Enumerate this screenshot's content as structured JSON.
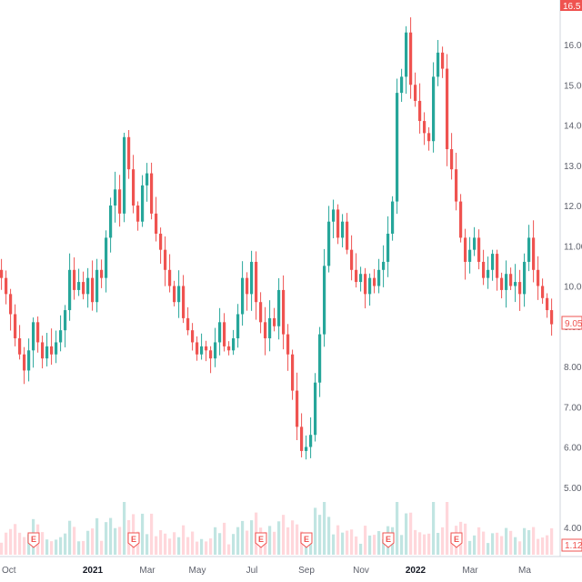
{
  "chart_data": {
    "type": "candlestick",
    "xlabel": "",
    "ylabel": "",
    "title": "",
    "ylim": [
      4,
      16.5
    ],
    "y_ticks": [
      "4.00",
      "5.00",
      "6.00",
      "7.00",
      "8.00",
      "9.00",
      "10.00",
      "11.00",
      "12.00",
      "13.00",
      "14.00",
      "15.00",
      "16.00"
    ],
    "y_tick_values": [
      4,
      5,
      6,
      7,
      8,
      9,
      10,
      11,
      12,
      13,
      14,
      15,
      16
    ],
    "x_ticks": [
      {
        "label": "Oct",
        "bold": false
      },
      {
        "label": "2021",
        "bold": true
      },
      {
        "label": "Mar",
        "bold": false
      },
      {
        "label": "May",
        "bold": false
      },
      {
        "label": "Jul",
        "bold": false
      },
      {
        "label": "Sep",
        "bold": false
      },
      {
        "label": "Nov",
        "bold": false
      },
      {
        "label": "2022",
        "bold": true
      },
      {
        "label": "Mar",
        "bold": false
      },
      {
        "label": "Ma",
        "bold": false
      }
    ],
    "x_tick_index": [
      0,
      20,
      32,
      43,
      55,
      67,
      79,
      91,
      103,
      115
    ],
    "earnings_markers": [
      {
        "label": "E",
        "index": 7
      },
      {
        "label": "E",
        "index": 29
      },
      {
        "label": "E",
        "index": 57
      },
      {
        "label": "E",
        "index": 67
      },
      {
        "label": "E",
        "index": 85
      },
      {
        "label": "E",
        "index": 100
      }
    ],
    "last_price_label": "9.05",
    "last_price": 9.05,
    "top_price_label": "16.5",
    "volume_label": "1.12",
    "colors": {
      "up": "#26a69a",
      "down": "#ef5350",
      "volume_up": "#b2dfdb",
      "volume_down": "#ffcdd2",
      "price_tag": "#ef5350"
    },
    "close": [
      10.2,
      9.8,
      9.3,
      8.7,
      8.3,
      7.9,
      8.4,
      9.1,
      8.6,
      8.2,
      8.5,
      8.3,
      8.6,
      8.9,
      9.4,
      10.4,
      9.9,
      10.1,
      9.8,
      10.2,
      9.6,
      10.4,
      10.2,
      11.2,
      12.0,
      12.4,
      11.8,
      13.7,
      12.9,
      12.0,
      11.6,
      12.5,
      12.8,
      11.8,
      11.3,
      10.9,
      10.4,
      10.0,
      9.6,
      10.0,
      9.2,
      8.9,
      8.6,
      8.3,
      8.5,
      8.4,
      8.2,
      8.6,
      9.1,
      8.5,
      8.4,
      8.7,
      9.3,
      10.2,
      9.8,
      10.6,
      9.6,
      9.1,
      8.7,
      9.2,
      9.0,
      9.9,
      8.8,
      8.3,
      7.4,
      6.5,
      5.9,
      6.0,
      6.3,
      7.6,
      8.8,
      10.5,
      11.6,
      11.9,
      11.2,
      11.6,
      10.9,
      10.4,
      10.1,
      10.3,
      9.8,
      10.2,
      10.0,
      10.4,
      10.6,
      11.3,
      12.1,
      14.8,
      15.2,
      16.3,
      15.0,
      14.6,
      14.1,
      13.8,
      13.6,
      15.2,
      15.8,
      15.4,
      13.4,
      12.9,
      12.1,
      11.2,
      10.6,
      10.9,
      11.2,
      10.6,
      10.2,
      10.4,
      10.8,
      10.2,
      9.9,
      10.3,
      10.0,
      10.1,
      9.8,
      10.6,
      11.2,
      10.4,
      10.0,
      9.7,
      9.4,
      9.05
    ]
  }
}
